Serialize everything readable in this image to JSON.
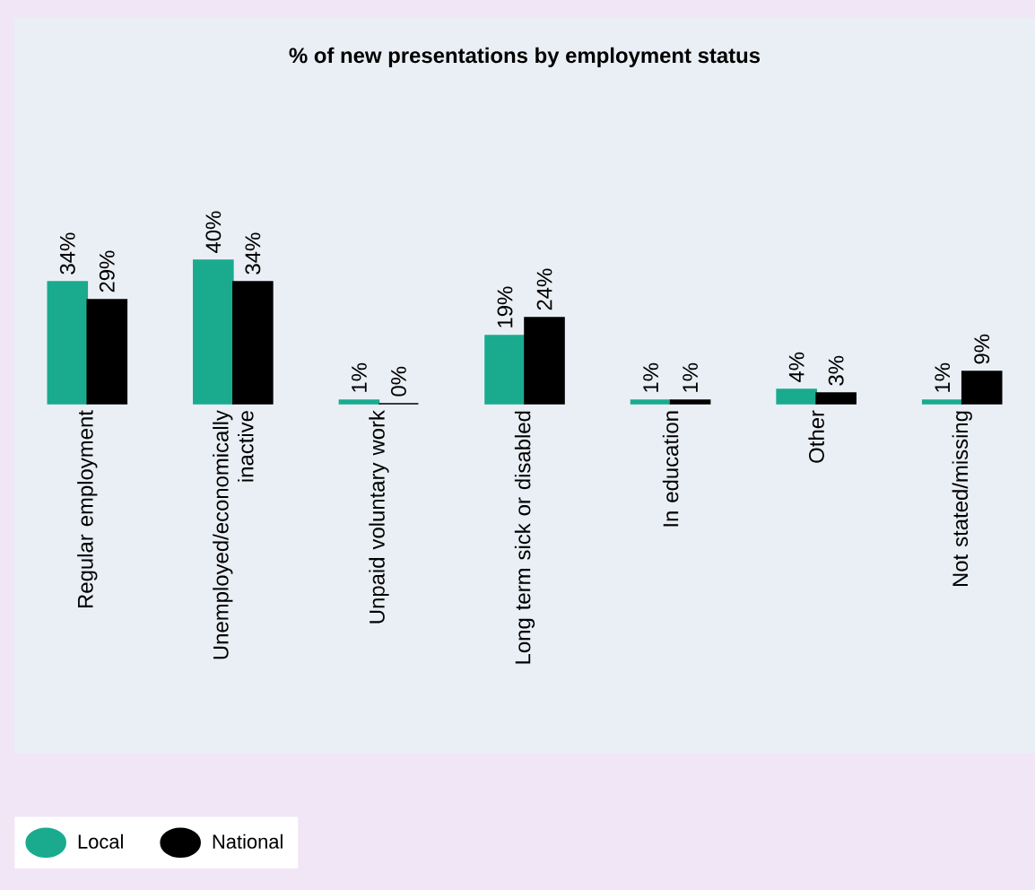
{
  "chart_data": {
    "type": "bar",
    "title": "% of new presentations by employment status",
    "categories": [
      "Regular employment",
      "Unemployed/economically inactive",
      "Unpaid voluntary work",
      "Long term sick or disabled",
      "In education",
      "Other",
      "Not stated/missing"
    ],
    "series": [
      {
        "name": "Local",
        "color": "#1aab8f",
        "values": [
          34,
          40,
          1,
          19,
          1,
          4,
          1
        ],
        "value_labels": [
          "34%",
          "40%",
          "1%",
          "19%",
          "1%",
          "4%",
          "1%"
        ]
      },
      {
        "name": "National",
        "color": "#000000",
        "values": [
          29,
          34,
          0,
          24,
          1,
          3,
          9
        ],
        "value_labels": [
          "29%",
          "34%",
          "0%",
          "24%",
          "1%",
          "3%",
          "9%"
        ]
      }
    ],
    "legend": "bottom left"
  }
}
